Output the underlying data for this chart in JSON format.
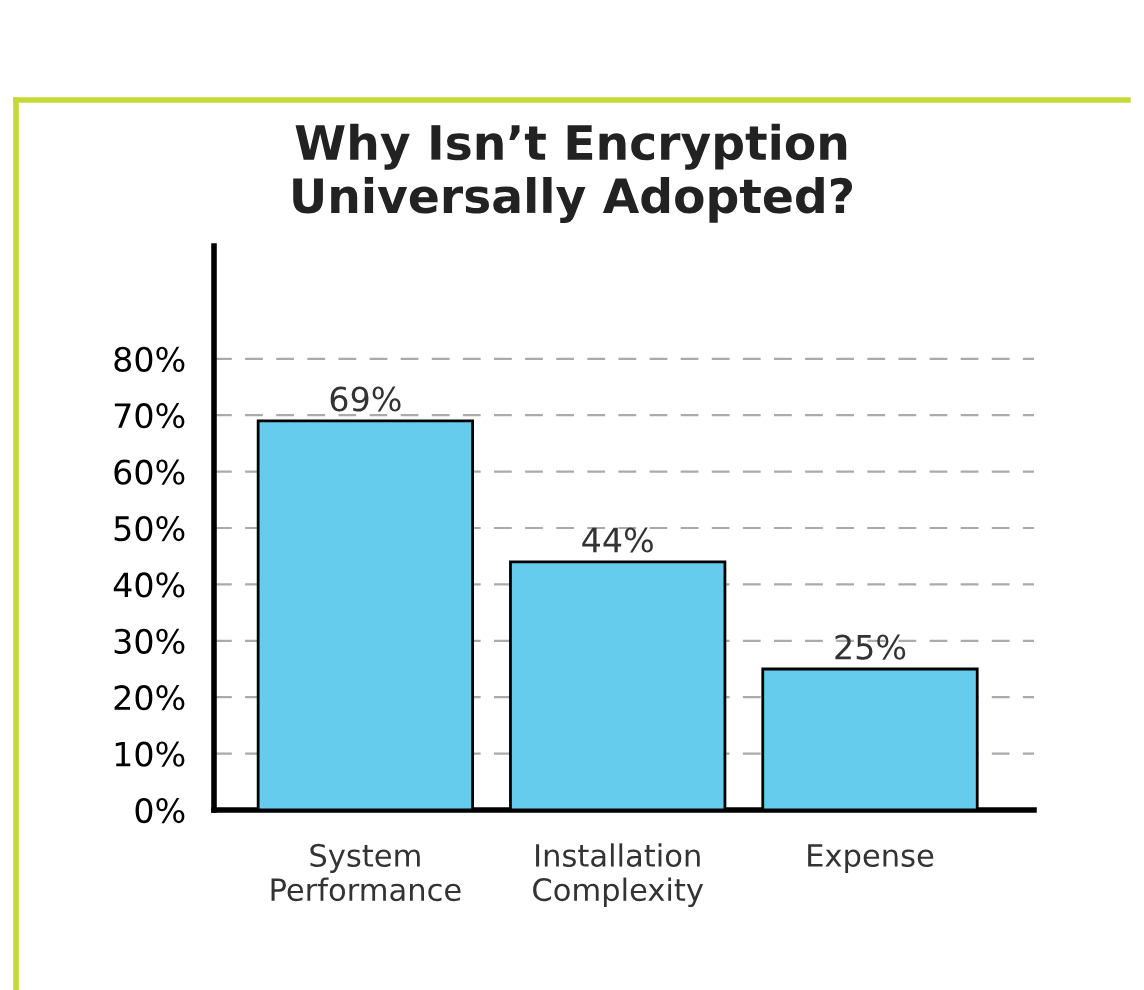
{
  "chart_data": {
    "type": "bar",
    "title": "Why Isn’t Encryption\nUniversally Adopted?",
    "categories": [
      "System\nPerformance",
      "Installation\nComplexity",
      "Expense"
    ],
    "values": [
      69,
      44,
      25
    ],
    "color": "#66ccee",
    "value_labels": [
      "69%",
      "44%",
      "25%"
    ],
    "ylim": [
      0,
      100
    ],
    "yticks": [
      {
        "value": 0,
        "label": "0%"
      },
      {
        "value": 10,
        "label": "10%"
      },
      {
        "value": 20,
        "label": "20%"
      },
      {
        "value": 30,
        "label": "30%"
      },
      {
        "value": 40,
        "label": "40%"
      },
      {
        "value": 50,
        "label": "50%"
      },
      {
        "value": 60,
        "label": "60%"
      },
      {
        "value": 70,
        "label": "70%"
      },
      {
        "value": 80,
        "label": "80%"
      }
    ],
    "grid": "y"
  }
}
